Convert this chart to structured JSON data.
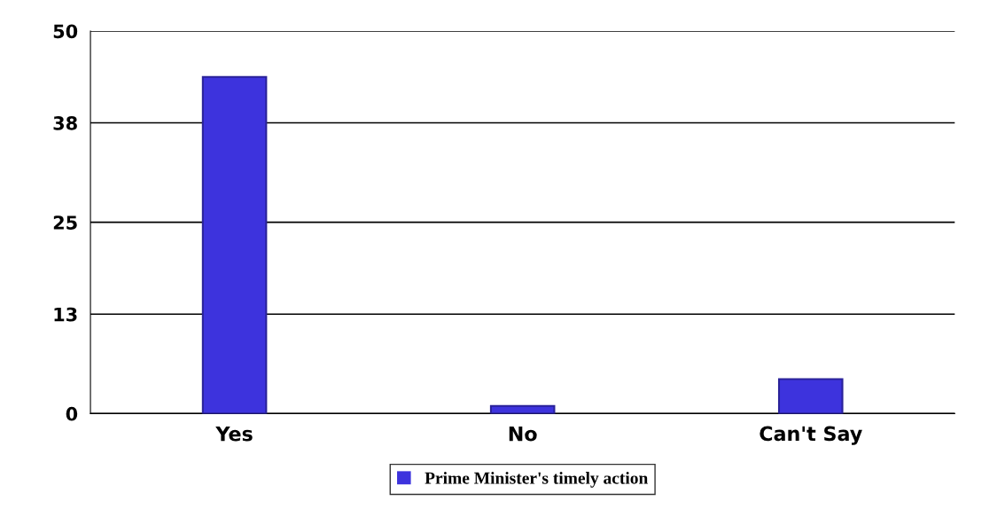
{
  "chart_data": {
    "type": "bar",
    "categories": [
      "Yes",
      "No",
      "Can't Say"
    ],
    "series": [
      {
        "name": "Prime Minister's timely action",
        "color": "#3d33dd",
        "values": [
          44,
          1,
          4.5
        ]
      }
    ],
    "ylim": [
      0,
      50
    ],
    "yticks": [
      0,
      13,
      25,
      38,
      50
    ],
    "grid": "y",
    "legend": "bottom"
  }
}
